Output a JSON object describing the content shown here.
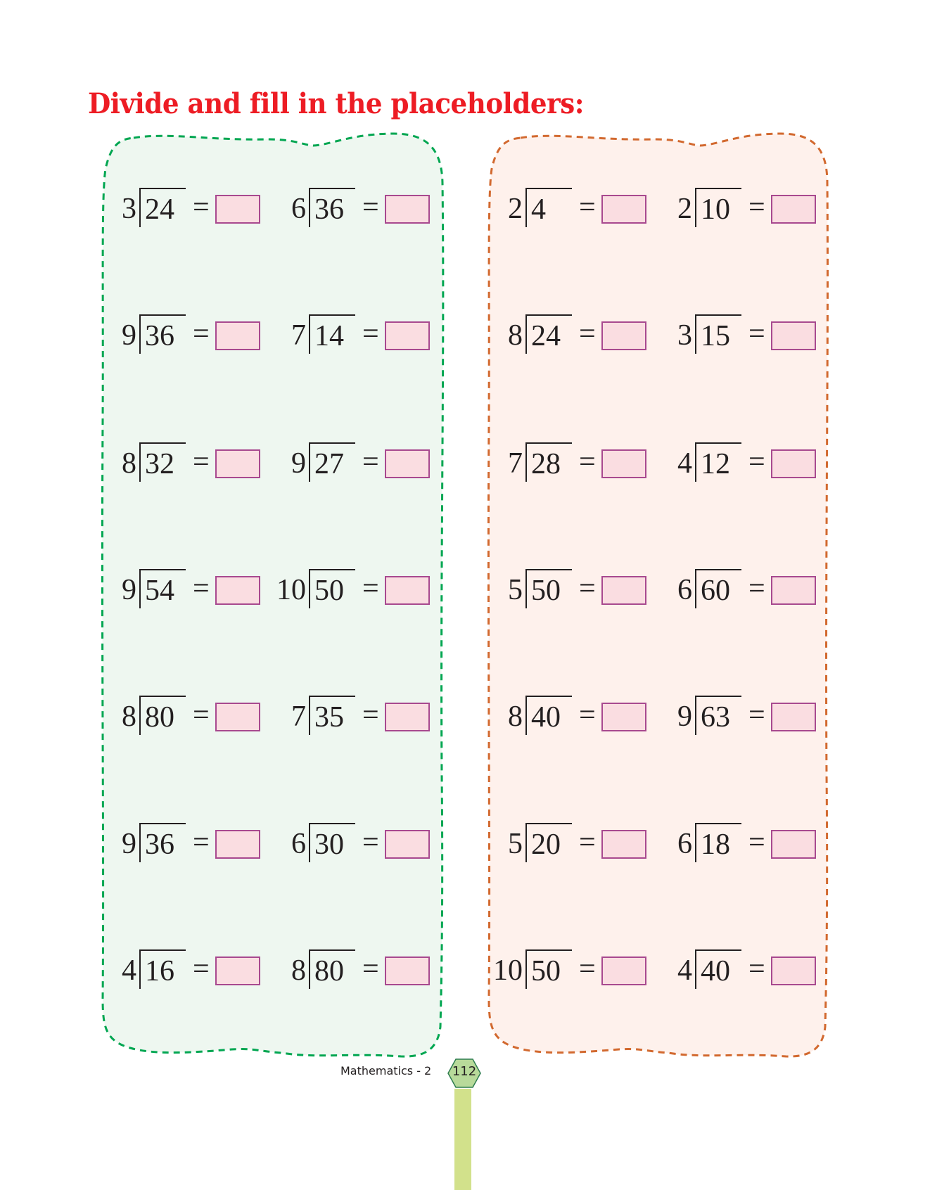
{
  "title": "Divide and fill in the placeholders:",
  "colors": {
    "title": "#ED1C24",
    "green_panel_fill": "#EEF7F0",
    "green_panel_border": "#00A651",
    "orange_panel_fill": "#FEF1EC",
    "orange_panel_border": "#D2692F",
    "answer_box_fill": "#FADDE1",
    "answer_box_border": "#A8498F"
  },
  "panels": [
    {
      "name": "green",
      "columns": [
        [
          {
            "divisor": "3",
            "dividend": "24"
          },
          {
            "divisor": "9",
            "dividend": "36"
          },
          {
            "divisor": "8",
            "dividend": "32"
          },
          {
            "divisor": "9",
            "dividend": "54"
          },
          {
            "divisor": "8",
            "dividend": "80"
          },
          {
            "divisor": "9",
            "dividend": "36"
          },
          {
            "divisor": "4",
            "dividend": "16"
          }
        ],
        [
          {
            "divisor": "6",
            "dividend": "36"
          },
          {
            "divisor": "7",
            "dividend": "14"
          },
          {
            "divisor": "9",
            "dividend": "27"
          },
          {
            "divisor": "10",
            "dividend": "50"
          },
          {
            "divisor": "7",
            "dividend": "35"
          },
          {
            "divisor": "6",
            "dividend": "30"
          },
          {
            "divisor": "8",
            "dividend": "80"
          }
        ]
      ]
    },
    {
      "name": "orange",
      "columns": [
        [
          {
            "divisor": "2",
            "dividend": "4"
          },
          {
            "divisor": "8",
            "dividend": "24"
          },
          {
            "divisor": "7",
            "dividend": "28"
          },
          {
            "divisor": "5",
            "dividend": "50"
          },
          {
            "divisor": "8",
            "dividend": "40"
          },
          {
            "divisor": "5",
            "dividend": "20"
          },
          {
            "divisor": "10",
            "dividend": "50"
          }
        ],
        [
          {
            "divisor": "2",
            "dividend": "10"
          },
          {
            "divisor": "3",
            "dividend": "15"
          },
          {
            "divisor": "4",
            "dividend": "12"
          },
          {
            "divisor": "6",
            "dividend": "60"
          },
          {
            "divisor": "9",
            "dividend": "63"
          },
          {
            "divisor": "6",
            "dividend": "18"
          },
          {
            "divisor": "4",
            "dividend": "40"
          }
        ]
      ]
    }
  ],
  "equals_sign": "=",
  "footer": {
    "book": "Mathematics - 2",
    "page": "112"
  }
}
